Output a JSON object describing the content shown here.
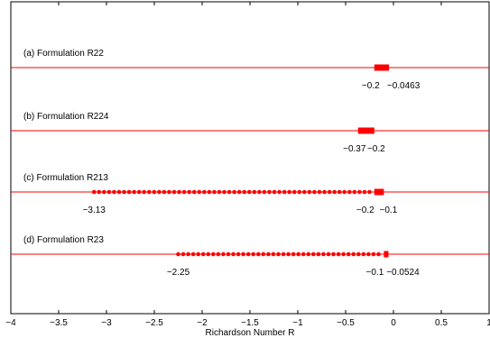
{
  "chart_data": {
    "type": "scatter",
    "xlabel": "Richardson Number R",
    "xlim": [
      -4,
      1
    ],
    "xticks": [
      -4,
      -3.5,
      -3,
      -2.5,
      -2,
      -1.5,
      -1,
      -0.5,
      0,
      0.5,
      1
    ],
    "xtick_labels": [
      "−4",
      "−3.5",
      "−3",
      "−2.5",
      "−2",
      "−1.5",
      "−1",
      "−0.5",
      "0",
      "0.5",
      "1"
    ],
    "grid": false,
    "line_color": "#ff0000",
    "marker_color": "#ff0000",
    "series": [
      {
        "name": "(a) Formulation R22",
        "start": -0.2,
        "end": -0.0463,
        "style": "band",
        "labels": [
          {
            "value": -0.2,
            "text": "−0.2"
          },
          {
            "value": -0.0463,
            "text": "−0.0463"
          }
        ]
      },
      {
        "name": "(b) Formulation R224",
        "start": -0.37,
        "end": -0.2,
        "style": "band",
        "labels": [
          {
            "value": -0.37,
            "text": "−0.37"
          },
          {
            "value": -0.2,
            "text": "−0.2"
          }
        ]
      },
      {
        "name": "(c) Formulation R213",
        "start": -3.13,
        "end": -0.1,
        "style": "dots",
        "dense_from": -0.2,
        "labels": [
          {
            "value": -3.13,
            "text": "−3.13"
          },
          {
            "value": -0.2,
            "text": "−0.2"
          },
          {
            "value": -0.1,
            "text": "−0.1"
          }
        ]
      },
      {
        "name": "(d) Formulation R23",
        "start": -2.25,
        "end": -0.0524,
        "style": "dots",
        "dense_from": -0.1,
        "labels": [
          {
            "value": -2.25,
            "text": "−2.25"
          },
          {
            "value": -0.1,
            "text": "−0.1"
          },
          {
            "value": -0.0524,
            "text": "−0.0524"
          }
        ]
      }
    ]
  }
}
